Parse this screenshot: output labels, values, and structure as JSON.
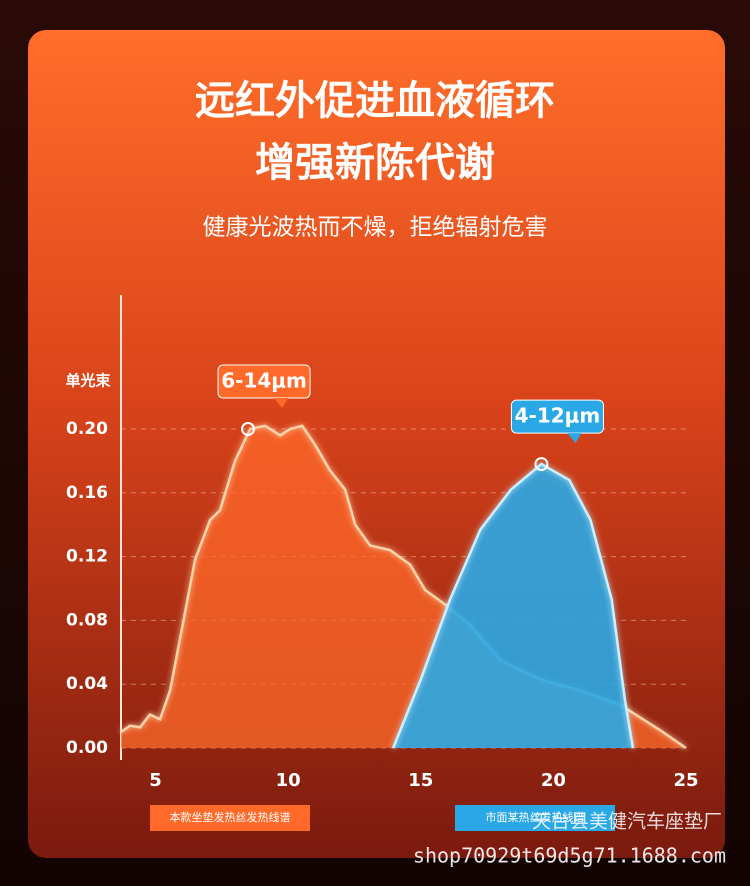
{
  "chart_data": {
    "type": "area",
    "title": "远红外促进血液循环",
    "subtitle_line": "增强新陈代谢",
    "subtitle": "健康光波热而不燥，拒绝辐射危害",
    "y_label": "单光束",
    "xlim": [
      3.7,
      25
    ],
    "xticks": [
      5,
      10,
      15,
      20,
      25
    ],
    "ylim": [
      0,
      0.284
    ],
    "yticks": [
      {
        "value": 0,
        "label": "0.00"
      },
      {
        "value": 0.04,
        "label": "0.04"
      },
      {
        "value": 0.08,
        "label": "0.08"
      },
      {
        "value": 0.12,
        "label": "0.12"
      },
      {
        "value": 0.16,
        "label": "0.16"
      },
      {
        "value": 0.2,
        "label": "0.20"
      }
    ],
    "grid": true,
    "series": [
      {
        "name": "本款坐垫发热丝发热线谱",
        "color": "#ff6a2a",
        "x": [
          3.7,
          4.04,
          4.42,
          4.79,
          5.17,
          5.55,
          5.92,
          6.49,
          7.06,
          7.43,
          8.0,
          8.57,
          9.13,
          9.7,
          10.08,
          10.53,
          11.02,
          11.58,
          12.15,
          12.53,
          13.09,
          13.85,
          14.6,
          15.17,
          15.92,
          16.87,
          18.0,
          19.51,
          21.02,
          22.53,
          24.04,
          25
        ],
        "values": [
          0.01,
          0.014,
          0.013,
          0.021,
          0.018,
          0.036,
          0.068,
          0.118,
          0.143,
          0.149,
          0.18,
          0.2,
          0.202,
          0.196,
          0.2,
          0.202,
          0.19,
          0.174,
          0.162,
          0.14,
          0.127,
          0.124,
          0.115,
          0.099,
          0.09,
          0.077,
          0.055,
          0.043,
          0.036,
          0.027,
          0.011,
          0
        ]
      },
      {
        "name": "市面某热丝发热线谱",
        "color": "#2aa8e6",
        "x": [
          13.96,
          15,
          16.1,
          17.25,
          18.4,
          19.55,
          20.6,
          21.4,
          22.2,
          22.7,
          23
        ],
        "values": [
          0,
          0.043,
          0.093,
          0.137,
          0.162,
          0.178,
          0.168,
          0.143,
          0.093,
          0.03,
          0
        ]
      }
    ],
    "annotations": [
      {
        "text": "6-14μm",
        "x": 8.49,
        "y": 0.2,
        "color": "#ff6a2a"
      },
      {
        "text": "4-12μm",
        "x": 19.55,
        "y": 0.178,
        "color": "#2aa8e6"
      }
    ],
    "watermarks": [
      "天台县美健汽车座垫厂",
      "shop70929t69d5g71.1688.com"
    ]
  }
}
